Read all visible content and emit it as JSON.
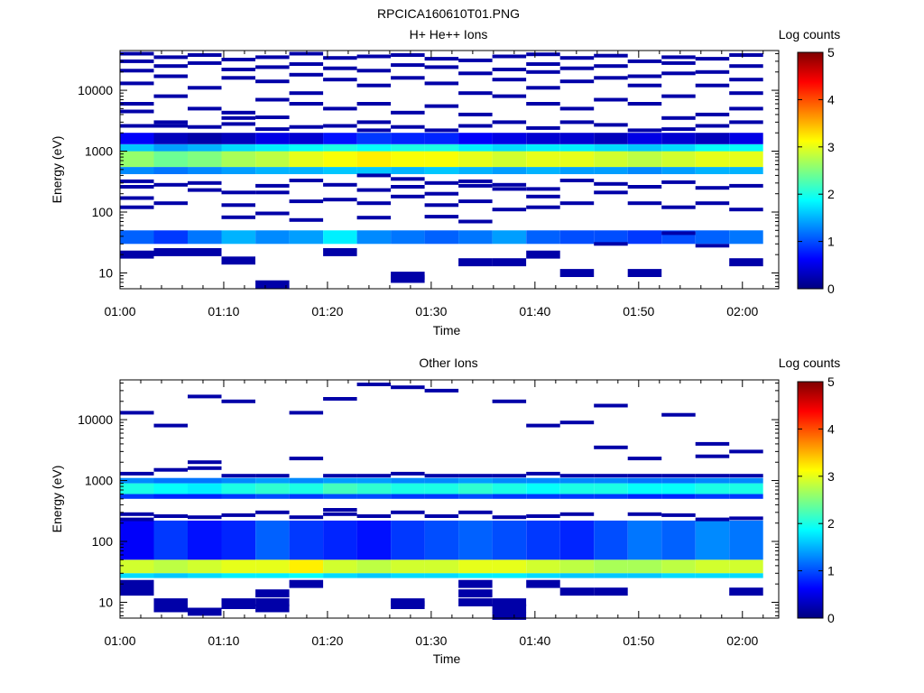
{
  "figure": {
    "filename": "RPCICA160610T01.PNG"
  },
  "colors": {
    "colormap": [
      "#00007f",
      "#0000ff",
      "#0080ff",
      "#00ffff",
      "#80ff80",
      "#ffff00",
      "#ff8000",
      "#ff0000",
      "#7f0000"
    ],
    "background": "#ffffff",
    "axis": "#000000"
  },
  "chart_data": [
    {
      "type": "heatmap",
      "title": "H+ He++ Ions",
      "xlabel": "Time",
      "ylabel": "Energy (eV)",
      "x_ticks": [
        "01:00",
        "01:10",
        "01:20",
        "01:30",
        "01:40",
        "01:50",
        "02:00"
      ],
      "y_ticks": [
        "10",
        "100",
        "1000",
        "10000"
      ],
      "y_scale": "log",
      "ylim": [
        5.5,
        45000
      ],
      "x_range_minutes": [
        0,
        63.5
      ],
      "colorbar": {
        "label": "Log counts",
        "ticks": [
          "0",
          "1",
          "2",
          "3",
          "4",
          "5"
        ],
        "range": [
          0,
          5
        ]
      },
      "time_bins": 19,
      "bands": [
        {
          "emin": 550,
          "emax": 1000,
          "level": [
            2.6,
            2.4,
            2.5,
            2.7,
            2.8,
            3.0,
            3.1,
            3.2,
            3.1,
            3.1,
            3.0,
            2.9,
            3.0,
            3.0,
            2.9,
            2.8,
            2.9,
            3.0,
            3.0
          ]
        },
        {
          "emin": 1000,
          "emax": 1300,
          "level": [
            1.6,
            1.4,
            1.5,
            1.7,
            1.8,
            1.9,
            2.0,
            1.9,
            2.0,
            2.0,
            1.8,
            1.7,
            1.8,
            1.8,
            1.7,
            1.6,
            1.7,
            1.9,
            1.9
          ]
        },
        {
          "emin": 420,
          "emax": 550,
          "level": [
            1.3,
            1.2,
            1.3,
            1.4,
            1.5,
            1.5,
            1.6,
            1.6,
            1.5,
            1.6,
            1.5,
            1.4,
            1.5,
            1.4,
            1.4,
            1.3,
            1.4,
            1.5,
            1.5
          ]
        },
        {
          "emin": 30,
          "emax": 50,
          "level": [
            1.1,
            0.9,
            1.2,
            1.5,
            1.3,
            1.4,
            1.8,
            1.3,
            1.2,
            1.1,
            1.2,
            1.4,
            1.1,
            1.0,
            1.0,
            0.9,
            1.0,
            1.1,
            1.2
          ]
        },
        {
          "emin": 1300,
          "emax": 2000,
          "level": [
            0.6,
            0.3,
            0.2,
            0.3,
            0.5,
            0.4,
            0.7,
            0.9,
            0.8,
            0.8,
            0.6,
            0.5,
            0.4,
            0.4,
            0.3,
            0.5,
            0.4,
            0.3,
            0.5
          ]
        }
      ],
      "sparse": [
        {
          "t": 0,
          "e": [
            40000,
            30000,
            21000,
            13000,
            6000,
            4500,
            2600,
            320,
            260,
            170,
            120,
            20
          ]
        },
        {
          "t": 1,
          "e": [
            35000,
            25000,
            17000,
            8000,
            3000,
            2600,
            280,
            140,
            22
          ]
        },
        {
          "t": 2,
          "e": [
            38000,
            28000,
            11000,
            5000,
            2500,
            300,
            230,
            22
          ]
        },
        {
          "t": 3,
          "e": [
            32000,
            22000,
            16000,
            4300,
            3500,
            2800,
            210,
            130,
            82,
            16
          ]
        },
        {
          "t": 4,
          "e": [
            35000,
            24000,
            14000,
            7000,
            3600,
            2300,
            270,
            210,
            95,
            6.5
          ]
        },
        {
          "t": 5,
          "e": [
            40000,
            27000,
            18000,
            9000,
            6000,
            2500,
            330,
            150,
            74
          ]
        },
        {
          "t": 6,
          "e": [
            34000,
            23000,
            15000,
            5000,
            2600,
            280,
            160,
            22
          ]
        },
        {
          "t": 7,
          "e": [
            36000,
            21000,
            12000,
            6000,
            3000,
            2200,
            400,
            230,
            140,
            81
          ]
        },
        {
          "t": 8,
          "e": [
            38000,
            26000,
            16000,
            4300,
            2500,
            350,
            260,
            180,
            8,
            9
          ]
        },
        {
          "t": 9,
          "e": [
            33000,
            24000,
            13000,
            5500,
            2200,
            300,
            200,
            130,
            84
          ]
        },
        {
          "t": 10,
          "e": [
            31000,
            19000,
            9000,
            4000,
            2600,
            320,
            270,
            150,
            70,
            15
          ]
        },
        {
          "t": 11,
          "e": [
            36000,
            22000,
            15000,
            8000,
            3000,
            280,
            240,
            110,
            15
          ]
        },
        {
          "t": 12,
          "e": [
            39000,
            27000,
            20000,
            11000,
            6000,
            2400,
            240,
            180,
            120,
            20
          ]
        },
        {
          "t": 13,
          "e": [
            34000,
            23000,
            14000,
            5000,
            3000,
            330,
            140,
            10
          ]
        },
        {
          "t": 14,
          "e": [
            37000,
            25000,
            16000,
            7000,
            2700,
            290,
            210,
            30
          ]
        },
        {
          "t": 15,
          "e": [
            30000,
            17000,
            12000,
            6000,
            2200,
            260,
            140,
            10
          ]
        },
        {
          "t": 16,
          "e": [
            35000,
            28000,
            19000,
            8000,
            3500,
            2300,
            310,
            120,
            45
          ]
        },
        {
          "t": 17,
          "e": [
            33000,
            20000,
            12000,
            4000,
            2600,
            250,
            140,
            28
          ]
        },
        {
          "t": 18,
          "e": [
            38000,
            25000,
            15000,
            9000,
            5000,
            3000,
            270,
            110,
            15
          ]
        }
      ]
    },
    {
      "type": "heatmap",
      "title": "Other Ions",
      "xlabel": "Time",
      "ylabel": "Energy (eV)",
      "x_ticks": [
        "01:00",
        "01:10",
        "01:20",
        "01:30",
        "01:40",
        "01:50",
        "02:00"
      ],
      "y_ticks": [
        "10",
        "100",
        "1000",
        "10000"
      ],
      "y_scale": "log",
      "ylim": [
        5.5,
        45000
      ],
      "x_range_minutes": [
        0,
        63.5
      ],
      "colorbar": {
        "label": "Log counts",
        "ticks": [
          "0",
          "1",
          "2",
          "3",
          "4",
          "5"
        ],
        "range": [
          0,
          5
        ]
      },
      "time_bins": 19,
      "bands": [
        {
          "emin": 30,
          "emax": 50,
          "level": [
            2.9,
            2.8,
            2.9,
            3.0,
            3.0,
            3.2,
            2.9,
            2.8,
            2.9,
            2.9,
            3.0,
            3.0,
            2.9,
            2.8,
            2.7,
            2.7,
            2.8,
            2.9,
            2.9
          ]
        },
        {
          "emin": 25,
          "emax": 30,
          "level": [
            1.7,
            1.6,
            1.7,
            1.8,
            1.8,
            1.9,
            1.7,
            1.6,
            1.7,
            1.7,
            1.8,
            1.8,
            1.7,
            1.6,
            1.6,
            1.6,
            1.7,
            1.7,
            1.7
          ]
        },
        {
          "emin": 600,
          "emax": 900,
          "level": [
            2.0,
            1.9,
            1.8,
            2.0,
            2.1,
            2.0,
            2.2,
            2.1,
            2.0,
            2.0,
            2.1,
            2.0,
            1.9,
            2.0,
            2.0,
            1.9,
            1.9,
            2.0,
            2.0
          ]
        },
        {
          "emin": 900,
          "emax": 1100,
          "level": [
            1.3,
            1.2,
            1.2,
            1.3,
            1.4,
            1.3,
            1.4,
            1.4,
            1.3,
            1.3,
            1.4,
            1.3,
            1.3,
            1.3,
            1.3,
            1.2,
            1.2,
            1.3,
            1.3
          ]
        },
        {
          "emin": 500,
          "emax": 600,
          "level": [
            0.9,
            0.8,
            0.8,
            0.9,
            1.0,
            0.9,
            1.0,
            1.0,
            0.9,
            0.9,
            1.0,
            0.9,
            0.9,
            0.9,
            0.9,
            0.8,
            0.8,
            0.9,
            0.9
          ]
        },
        {
          "emin": 50,
          "emax": 220,
          "level": [
            0.6,
            0.9,
            0.7,
            0.8,
            1.1,
            0.9,
            0.8,
            0.7,
            0.9,
            1.0,
            1.1,
            1.0,
            0.9,
            0.8,
            1.0,
            1.2,
            1.1,
            1.3,
            1.2
          ]
        }
      ],
      "sparse": [
        {
          "t": 0,
          "e": [
            13000,
            1300,
            280,
            230,
            20,
            15
          ]
        },
        {
          "t": 1,
          "e": [
            8000,
            1500,
            260,
            10,
            8
          ]
        },
        {
          "t": 2,
          "e": [
            24000,
            2000,
            1600,
            250,
            7
          ]
        },
        {
          "t": 3,
          "e": [
            20000,
            1200,
            270,
            10,
            9
          ]
        },
        {
          "t": 4,
          "e": [
            1200,
            300,
            10,
            8,
            14
          ]
        },
        {
          "t": 5,
          "e": [
            13000,
            2300,
            250,
            20
          ]
        },
        {
          "t": 6,
          "e": [
            22000,
            1200,
            330,
            280
          ]
        },
        {
          "t": 7,
          "e": [
            38000,
            1200,
            260
          ]
        },
        {
          "t": 8,
          "e": [
            34000,
            1300,
            300,
            10,
            9
          ]
        },
        {
          "t": 9,
          "e": [
            30000,
            1200,
            260
          ]
        },
        {
          "t": 10,
          "e": [
            1200,
            300,
            20,
            14,
            10
          ]
        },
        {
          "t": 11,
          "e": [
            20000,
            1200,
            250,
            10,
            8,
            6
          ]
        },
        {
          "t": 12,
          "e": [
            8000,
            1300,
            260,
            20
          ]
        },
        {
          "t": 13,
          "e": [
            9000,
            1200,
            280,
            15
          ]
        },
        {
          "t": 14,
          "e": [
            17000,
            3500,
            1200,
            15
          ]
        },
        {
          "t": 15,
          "e": [
            2300,
            1200,
            280
          ]
        },
        {
          "t": 16,
          "e": [
            12000,
            1200,
            270
          ]
        },
        {
          "t": 17,
          "e": [
            4000,
            2500,
            1200,
            230
          ]
        },
        {
          "t": 18,
          "e": [
            3000,
            1200,
            240,
            15
          ]
        }
      ]
    }
  ]
}
